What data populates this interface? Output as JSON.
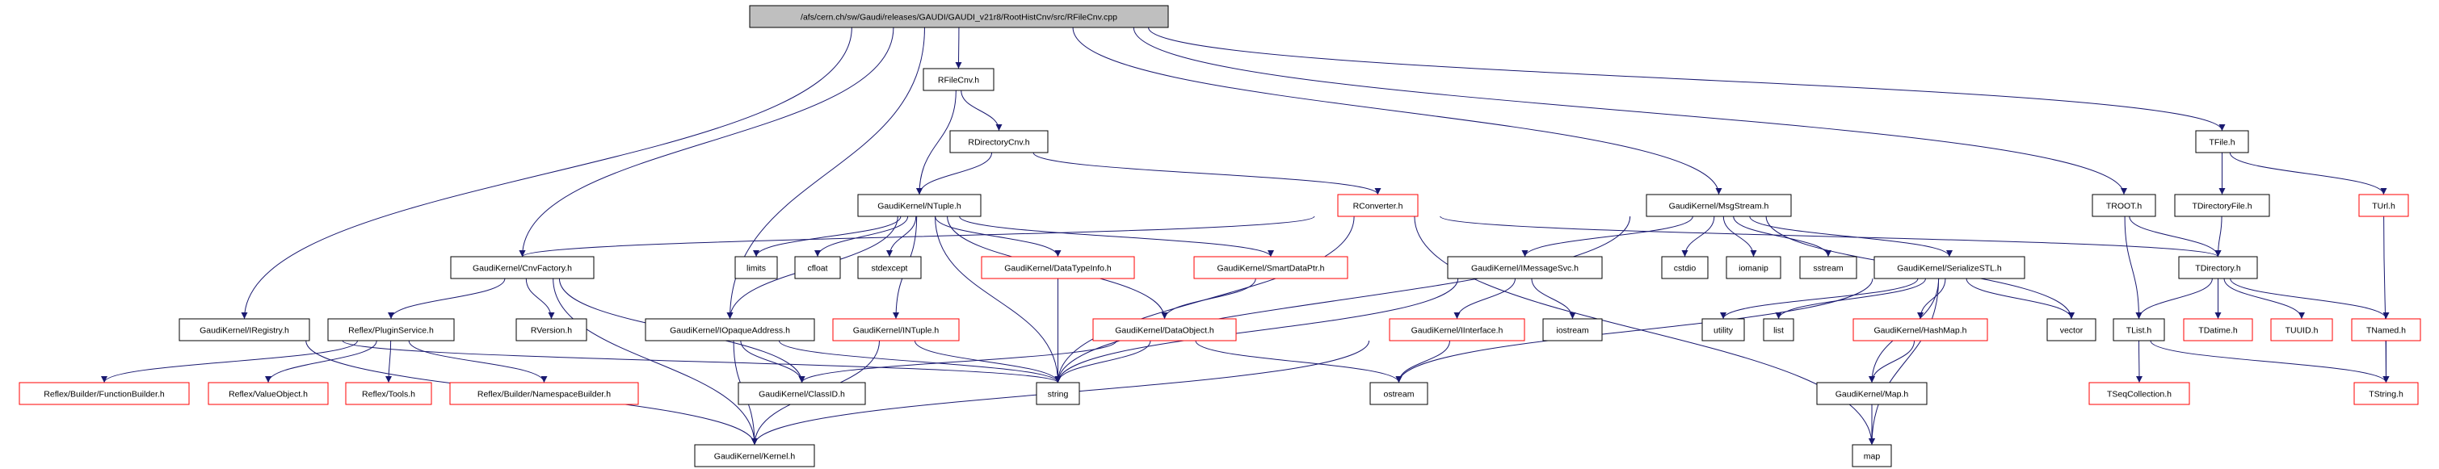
{
  "graph": {
    "edge_color": "#191970",
    "node_fill_root": "#bfbfbf",
    "border_normal": "#000000",
    "border_undocumented": "#ff0000",
    "nodes": [
      {
        "id": "root",
        "label": "/afs/cern.ch/sw/Gaudi/releases/GAUDI/GAUDI_v21r8/RootHistCnv/src/RFileCnv.cpp",
        "style": "root"
      },
      {
        "id": "RFileCnv",
        "label": "RFileCnv.h",
        "style": "normal"
      },
      {
        "id": "RDirectoryCnv",
        "label": "RDirectoryCnv.h",
        "style": "normal"
      },
      {
        "id": "TFile",
        "label": "TFile.h",
        "style": "normal"
      },
      {
        "id": "NTuple",
        "label": "GaudiKernel/NTuple.h",
        "style": "normal"
      },
      {
        "id": "RConverter",
        "label": "RConverter.h",
        "style": "red"
      },
      {
        "id": "MsgStream",
        "label": "GaudiKernel/MsgStream.h",
        "style": "normal"
      },
      {
        "id": "TROOT",
        "label": "TROOT.h",
        "style": "normal"
      },
      {
        "id": "TDirectoryFile",
        "label": "TDirectoryFile.h",
        "style": "normal"
      },
      {
        "id": "TUrl",
        "label": "TUrl.h",
        "style": "red"
      },
      {
        "id": "CnvFactory",
        "label": "GaudiKernel/CnvFactory.h",
        "style": "normal"
      },
      {
        "id": "limits",
        "label": "limits",
        "style": "normal"
      },
      {
        "id": "cfloat",
        "label": "cfloat",
        "style": "normal"
      },
      {
        "id": "stdexcept",
        "label": "stdexcept",
        "style": "normal"
      },
      {
        "id": "DataTypeInfo",
        "label": "GaudiKernel/DataTypeInfo.h",
        "style": "red"
      },
      {
        "id": "SmartDataPtr",
        "label": "GaudiKernel/SmartDataPtr.h",
        "style": "red"
      },
      {
        "id": "IMessageSvc",
        "label": "GaudiKernel/IMessageSvc.h",
        "style": "normal"
      },
      {
        "id": "cstdio",
        "label": "cstdio",
        "style": "normal"
      },
      {
        "id": "iomanip",
        "label": "iomanip",
        "style": "normal"
      },
      {
        "id": "sstream",
        "label": "sstream",
        "style": "normal"
      },
      {
        "id": "SerializeSTL",
        "label": "GaudiKernel/SerializeSTL.h",
        "style": "normal"
      },
      {
        "id": "TDirectory",
        "label": "TDirectory.h",
        "style": "normal"
      },
      {
        "id": "IRegistry",
        "label": "GaudiKernel/IRegistry.h",
        "style": "normal"
      },
      {
        "id": "PluginService",
        "label": "Reflex/PluginService.h",
        "style": "normal"
      },
      {
        "id": "RVersion",
        "label": "RVersion.h",
        "style": "normal"
      },
      {
        "id": "IOpaqueAddress",
        "label": "GaudiKernel/IOpaqueAddress.h",
        "style": "normal"
      },
      {
        "id": "INTuple",
        "label": "GaudiKernel/INTuple.h",
        "style": "red"
      },
      {
        "id": "DataObject",
        "label": "GaudiKernel/DataObject.h",
        "style": "red"
      },
      {
        "id": "IInterface",
        "label": "GaudiKernel/IInterface.h",
        "style": "red"
      },
      {
        "id": "iostream",
        "label": "iostream",
        "style": "normal"
      },
      {
        "id": "utility",
        "label": "utility",
        "style": "normal"
      },
      {
        "id": "list",
        "label": "list",
        "style": "normal"
      },
      {
        "id": "HashMap",
        "label": "GaudiKernel/HashMap.h",
        "style": "red"
      },
      {
        "id": "vector",
        "label": "vector",
        "style": "normal"
      },
      {
        "id": "TList",
        "label": "TList.h",
        "style": "normal"
      },
      {
        "id": "TDatime",
        "label": "TDatime.h",
        "style": "red"
      },
      {
        "id": "TUUID",
        "label": "TUUID.h",
        "style": "red"
      },
      {
        "id": "TNamed",
        "label": "TNamed.h",
        "style": "red"
      },
      {
        "id": "FunctionBuilder",
        "label": "Reflex/Builder/FunctionBuilder.h",
        "style": "red"
      },
      {
        "id": "ValueObject",
        "label": "Reflex/ValueObject.h",
        "style": "red"
      },
      {
        "id": "Tools",
        "label": "Reflex/Tools.h",
        "style": "red"
      },
      {
        "id": "NamespaceBuilder",
        "label": "Reflex/Builder/NamespaceBuilder.h",
        "style": "red"
      },
      {
        "id": "ClassID",
        "label": "GaudiKernel/ClassID.h",
        "style": "normal"
      },
      {
        "id": "string",
        "label": "string",
        "style": "normal"
      },
      {
        "id": "ostream",
        "label": "ostream",
        "style": "normal"
      },
      {
        "id": "Map",
        "label": "GaudiKernel/Map.h",
        "style": "normal"
      },
      {
        "id": "TSeqCollection",
        "label": "TSeqCollection.h",
        "style": "red"
      },
      {
        "id": "TString",
        "label": "TString.h",
        "style": "red"
      },
      {
        "id": "Kernel",
        "label": "GaudiKernel/Kernel.h",
        "style": "normal"
      },
      {
        "id": "map",
        "label": "map",
        "style": "normal"
      }
    ],
    "edges": [
      [
        "root",
        "IRegistry"
      ],
      [
        "root",
        "CnvFactory"
      ],
      [
        "root",
        "IOpaqueAddress"
      ],
      [
        "root",
        "RFileCnv"
      ],
      [
        "root",
        "MsgStream"
      ],
      [
        "root",
        "TROOT"
      ],
      [
        "root",
        "TFile"
      ],
      [
        "RFileCnv",
        "NTuple"
      ],
      [
        "RFileCnv",
        "RDirectoryCnv"
      ],
      [
        "RDirectoryCnv",
        "NTuple"
      ],
      [
        "RDirectoryCnv",
        "RConverter"
      ],
      [
        "NTuple",
        "limits"
      ],
      [
        "NTuple",
        "cfloat"
      ],
      [
        "NTuple",
        "stdexcept"
      ],
      [
        "NTuple",
        "string"
      ],
      [
        "NTuple",
        "DataTypeInfo"
      ],
      [
        "NTuple",
        "SmartDataPtr"
      ],
      [
        "NTuple",
        "DataObject"
      ],
      [
        "NTuple",
        "INTuple"
      ],
      [
        "NTuple",
        "IOpaqueAddress"
      ],
      [
        "RConverter",
        "CnvFactory"
      ],
      [
        "RConverter",
        "string"
      ],
      [
        "RConverter",
        "TDirectory"
      ],
      [
        "RConverter",
        "map"
      ],
      [
        "DataTypeInfo",
        "string"
      ],
      [
        "SmartDataPtr",
        "DataObject"
      ],
      [
        "DataObject",
        "ClassID"
      ],
      [
        "DataObject",
        "string"
      ],
      [
        "DataObject",
        "ostream"
      ],
      [
        "INTuple",
        "string"
      ],
      [
        "INTuple",
        "Kernel"
      ],
      [
        "IOpaqueAddress",
        "ClassID"
      ],
      [
        "IOpaqueAddress",
        "Kernel"
      ],
      [
        "IOpaqueAddress",
        "string"
      ],
      [
        "CnvFactory",
        "PluginService"
      ],
      [
        "CnvFactory",
        "RVersion"
      ],
      [
        "CnvFactory",
        "ClassID"
      ],
      [
        "CnvFactory",
        "Kernel"
      ],
      [
        "IRegistry",
        "Kernel"
      ],
      [
        "IRegistry",
        "string"
      ],
      [
        "PluginService",
        "FunctionBuilder"
      ],
      [
        "PluginService",
        "ValueObject"
      ],
      [
        "PluginService",
        "Tools"
      ],
      [
        "PluginService",
        "NamespaceBuilder"
      ],
      [
        "MsgStream",
        "IMessageSvc"
      ],
      [
        "MsgStream",
        "cstdio"
      ],
      [
        "MsgStream",
        "iomanip"
      ],
      [
        "MsgStream",
        "sstream"
      ],
      [
        "MsgStream",
        "SerializeSTL"
      ],
      [
        "MsgStream",
        "vector"
      ],
      [
        "MsgStream",
        "string"
      ],
      [
        "IMessageSvc",
        "IInterface"
      ],
      [
        "IMessageSvc",
        "iostream"
      ],
      [
        "IMessageSvc",
        "string"
      ],
      [
        "IInterface",
        "ostream"
      ],
      [
        "IInterface",
        "Kernel"
      ],
      [
        "SerializeSTL",
        "ostream"
      ],
      [
        "SerializeSTL",
        "utility"
      ],
      [
        "SerializeSTL",
        "list"
      ],
      [
        "SerializeSTL",
        "HashMap"
      ],
      [
        "SerializeSTL",
        "Map"
      ],
      [
        "SerializeSTL",
        "map"
      ],
      [
        "SerializeSTL",
        "vector"
      ],
      [
        "HashMap",
        "Map"
      ],
      [
        "Map",
        "map"
      ],
      [
        "TROOT",
        "TList"
      ],
      [
        "TROOT",
        "TDirectory"
      ],
      [
        "TFile",
        "TDirectoryFile"
      ],
      [
        "TFile",
        "TUrl"
      ],
      [
        "TDirectoryFile",
        "TDirectory"
      ],
      [
        "TDirectory",
        "TList"
      ],
      [
        "TDirectory",
        "TDatime"
      ],
      [
        "TDirectory",
        "TUUID"
      ],
      [
        "TDirectory",
        "TNamed"
      ],
      [
        "TList",
        "TSeqCollection"
      ],
      [
        "TList",
        "TString"
      ],
      [
        "TNamed",
        "TString"
      ],
      [
        "TUrl",
        "TString"
      ]
    ]
  }
}
